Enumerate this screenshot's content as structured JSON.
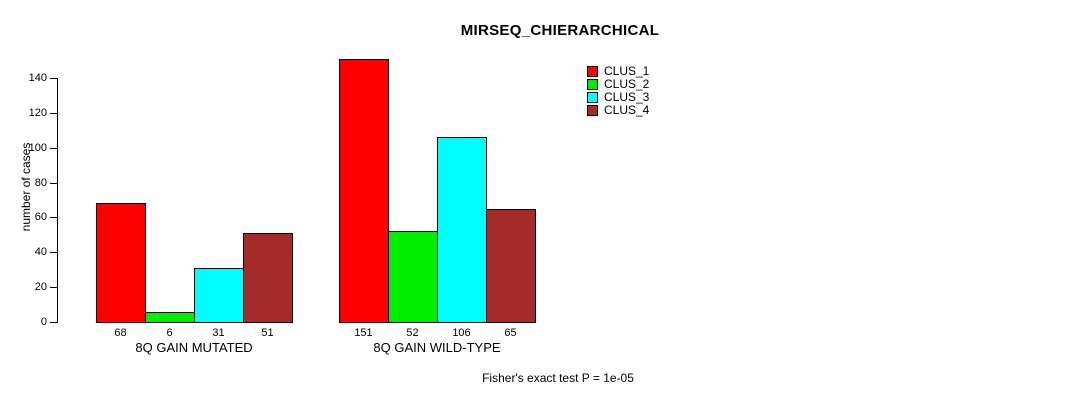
{
  "title": "MIRSEQ_CHIERARCHICAL",
  "footer": "Fisher's exact test P = 1e-05",
  "chart_data": {
    "type": "bar",
    "title": "MIRSEQ_CHIERARCHICAL",
    "xlabel": "",
    "ylabel": "number of cases",
    "ylim": [
      0,
      140
    ],
    "yticks": [
      0,
      20,
      40,
      60,
      80,
      100,
      120,
      140
    ],
    "grid": false,
    "legend_position": "top-right",
    "annotation": "Fisher's exact test P = 1e-05",
    "categories": [
      "8Q GAIN MUTATED",
      "8Q GAIN WILD-TYPE"
    ],
    "series": [
      {
        "name": "CLUS_1",
        "color": "#FF0000",
        "values": [
          68,
          151
        ]
      },
      {
        "name": "CLUS_2",
        "color": "#00EE00",
        "values": [
          6,
          52
        ]
      },
      {
        "name": "CLUS_3",
        "color": "#00FFFF",
        "values": [
          31,
          106
        ]
      },
      {
        "name": "CLUS_4",
        "color": "#A52A2A",
        "values": [
          51,
          65
        ]
      }
    ],
    "bar_value_labels": [
      [
        68,
        6,
        31,
        51
      ],
      [
        151,
        52,
        106,
        65
      ]
    ]
  }
}
